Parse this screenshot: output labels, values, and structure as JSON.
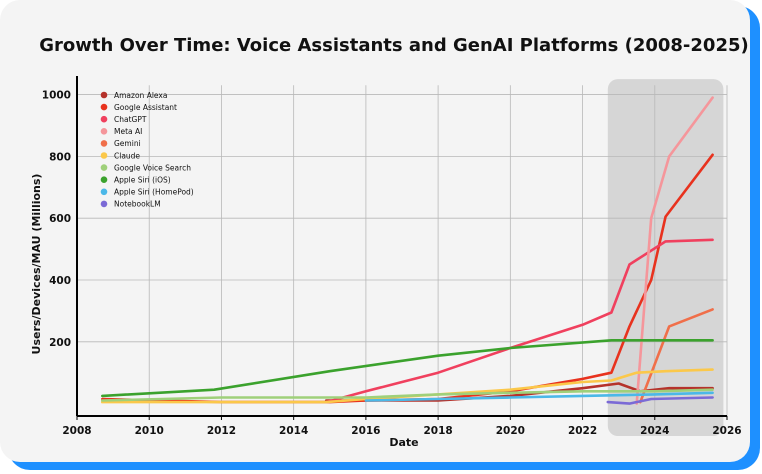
{
  "chart_data": {
    "type": "line",
    "title": "Growth Over Time: Voice Assistants and GenAI Platforms (2008-2025)",
    "xlabel": "Date",
    "ylabel": "Users/Devices/MAU (Millions)",
    "xlim": [
      2008,
      2026
    ],
    "ylim": [
      -40,
      1060
    ],
    "x_ticks": [
      2008,
      2010,
      2012,
      2014,
      2016,
      2018,
      2020,
      2022,
      2024,
      2026
    ],
    "y_ticks": [
      200,
      400,
      600,
      800,
      1000
    ],
    "grid": true,
    "legend_position": "top-left",
    "highlight_region": {
      "x_start": 2022.7,
      "x_end": 2025.9
    },
    "series": [
      {
        "name": "Amazon Alexa",
        "color": "#b5322b",
        "points": [
          [
            2014.9,
            10
          ],
          [
            2016,
            10
          ],
          [
            2018,
            10
          ],
          [
            2020,
            25
          ],
          [
            2022,
            50
          ],
          [
            2023,
            65
          ],
          [
            2023.6,
            40
          ],
          [
            2024.4,
            50
          ],
          [
            2025.6,
            50
          ]
        ]
      },
      {
        "name": "Google Assistant",
        "color": "#e8321e",
        "points": [
          [
            2008.7,
            15
          ],
          [
            2012,
            5
          ],
          [
            2014,
            5
          ],
          [
            2015,
            5
          ],
          [
            2016,
            10
          ],
          [
            2018,
            15
          ],
          [
            2020,
            40
          ],
          [
            2022,
            80
          ],
          [
            2022.8,
            100
          ],
          [
            2023.3,
            250
          ],
          [
            2023.9,
            400
          ],
          [
            2024.3,
            605
          ],
          [
            2025.6,
            805
          ]
        ]
      },
      {
        "name": "ChatGPT",
        "color": "#f0405e",
        "points": [
          [
            2014.9,
            5
          ],
          [
            2016,
            40
          ],
          [
            2018,
            100
          ],
          [
            2020,
            180
          ],
          [
            2022,
            255
          ],
          [
            2022.8,
            295
          ],
          [
            2023.3,
            450
          ],
          [
            2024.3,
            525
          ],
          [
            2025.6,
            530
          ]
        ]
      },
      {
        "name": "Meta AI",
        "color": "#f5969b",
        "points": [
          [
            2023.5,
            0
          ],
          [
            2023.9,
            600
          ],
          [
            2024.4,
            800
          ],
          [
            2025.6,
            990
          ]
        ]
      },
      {
        "name": "Gemini",
        "color": "#f06f4a",
        "points": [
          [
            2023.6,
            5
          ],
          [
            2024.4,
            250
          ],
          [
            2025.6,
            305
          ]
        ]
      },
      {
        "name": "Claude",
        "color": "#fbc84a",
        "points": [
          [
            2008.7,
            5
          ],
          [
            2014.9,
            5
          ],
          [
            2016,
            15
          ],
          [
            2018,
            30
          ],
          [
            2020,
            45
          ],
          [
            2022,
            70
          ],
          [
            2022.8,
            75
          ],
          [
            2023.5,
            100
          ],
          [
            2024.3,
            105
          ],
          [
            2025.6,
            110
          ]
        ]
      },
      {
        "name": "Google Voice Search",
        "color": "#9fd07a",
        "points": [
          [
            2008.7,
            10
          ],
          [
            2012,
            20
          ],
          [
            2016,
            20
          ],
          [
            2018,
            30
          ],
          [
            2020,
            35
          ],
          [
            2022,
            40
          ],
          [
            2024,
            40
          ],
          [
            2025.6,
            45
          ]
        ]
      },
      {
        "name": "Apple Siri (iOS)",
        "color": "#3ba22d",
        "points": [
          [
            2008.7,
            25
          ],
          [
            2011.8,
            45
          ],
          [
            2015,
            105
          ],
          [
            2018,
            155
          ],
          [
            2020,
            180
          ],
          [
            2022.8,
            205
          ],
          [
            2025.6,
            205
          ]
        ]
      },
      {
        "name": "Apple Siri (HomePod)",
        "color": "#4bb8e8",
        "points": [
          [
            2016,
            10
          ],
          [
            2018,
            15
          ],
          [
            2020,
            20
          ],
          [
            2022,
            25
          ],
          [
            2024,
            30
          ],
          [
            2025.6,
            35
          ]
        ]
      },
      {
        "name": "NotebookLM",
        "color": "#7b6ad6",
        "points": [
          [
            2022.7,
            5
          ],
          [
            2023.3,
            0
          ],
          [
            2023.9,
            15
          ],
          [
            2025.6,
            20
          ]
        ]
      }
    ]
  }
}
